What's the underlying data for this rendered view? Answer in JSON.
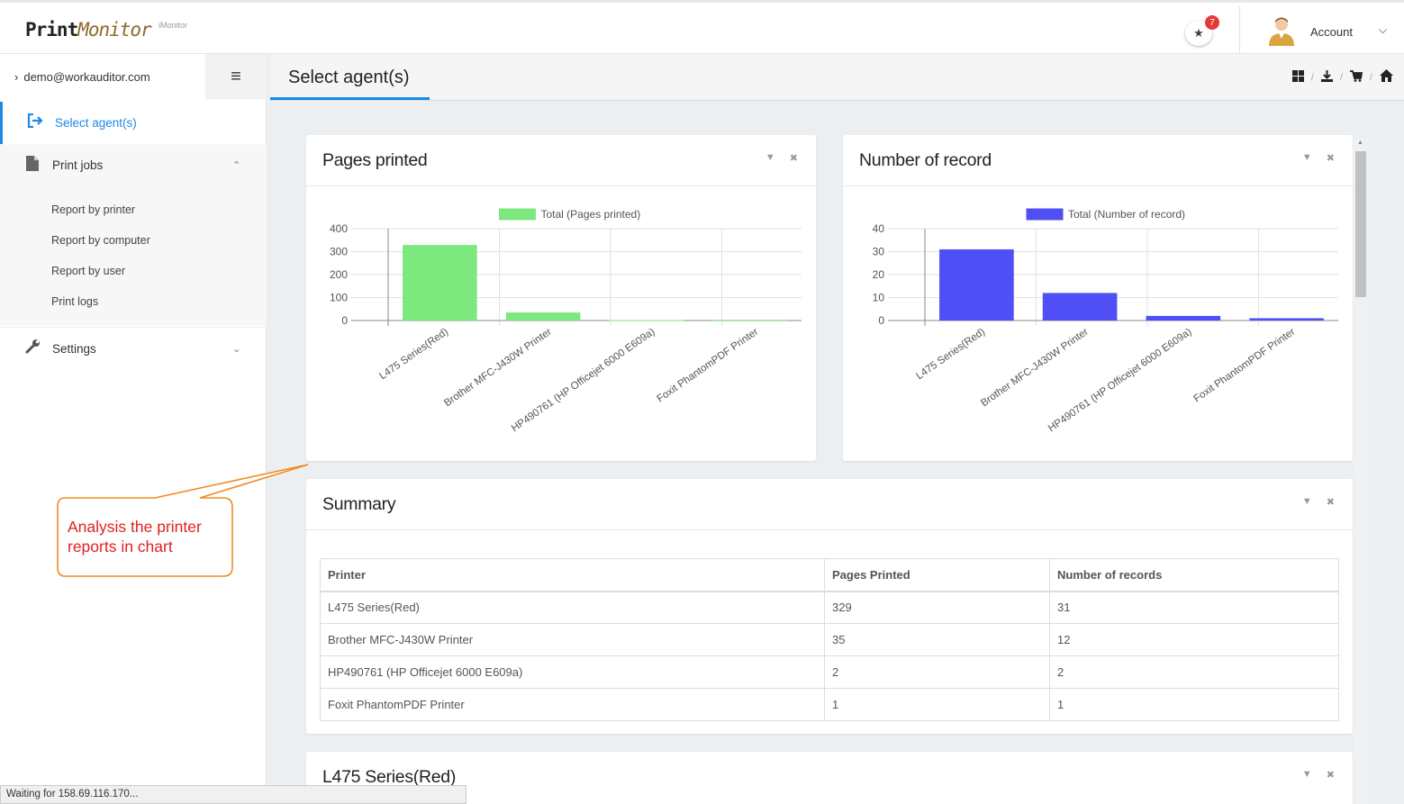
{
  "header": {
    "logo_part1": "Print",
    "logo_part2": "Monitor",
    "logo_sup": "iMonitor",
    "notifications_count": "7",
    "account_label": "Account"
  },
  "sidebar": {
    "user_email": "demo@workauditor.com",
    "items": [
      {
        "label": "Select agent(s)"
      },
      {
        "label": "Print jobs"
      },
      {
        "label": "Settings"
      }
    ],
    "print_jobs_sub": [
      "Report by printer",
      "Report by computer",
      "Report by user",
      "Print logs"
    ]
  },
  "main": {
    "title": "Select agent(s)"
  },
  "panels": {
    "pages_title": "Pages printed",
    "records_title": "Number of record",
    "summary_title": "Summary",
    "next_title": "L475 Series(Red)"
  },
  "summary": {
    "headers": [
      "Printer",
      "Pages Printed",
      "Number of records"
    ],
    "rows": [
      [
        "L475 Series(Red)",
        "329",
        "31"
      ],
      [
        "Brother MFC-J430W Printer",
        "35",
        "12"
      ],
      [
        "HP490761 (HP Officejet 6000 E609a)",
        "2",
        "2"
      ],
      [
        "Foxit PhantomPDF Printer",
        "1",
        "1"
      ]
    ]
  },
  "chart_data": [
    {
      "type": "bar",
      "title": "Pages printed",
      "categories": [
        "L475 Series(Red)",
        "Brother MFC-J430W Printer",
        "HP490761 (HP Officejet 6000 E609a)",
        "Foxit PhantomPDF Printer"
      ],
      "series": [
        {
          "name": "Total (Pages printed)",
          "values": [
            329,
            35,
            2,
            1
          ]
        }
      ],
      "ylim": [
        0,
        400
      ],
      "yticks": [
        0,
        100,
        200,
        300,
        400
      ],
      "color": "#7de87d"
    },
    {
      "type": "bar",
      "title": "Number of record",
      "categories": [
        "L475 Series(Red)",
        "Brother MFC-J430W Printer",
        "HP490761 (HP Officejet 6000 E609a)",
        "Foxit PhantomPDF Printer"
      ],
      "series": [
        {
          "name": "Total (Number of record)",
          "values": [
            31,
            12,
            2,
            1
          ]
        }
      ],
      "ylim": [
        0,
        40
      ],
      "yticks": [
        0,
        10,
        20,
        30,
        40
      ],
      "color": "#4f4ff5"
    }
  ],
  "callout": {
    "text": "Analysis the printer reports in chart"
  },
  "status": {
    "text": "Waiting for 158.69.116.170..."
  }
}
